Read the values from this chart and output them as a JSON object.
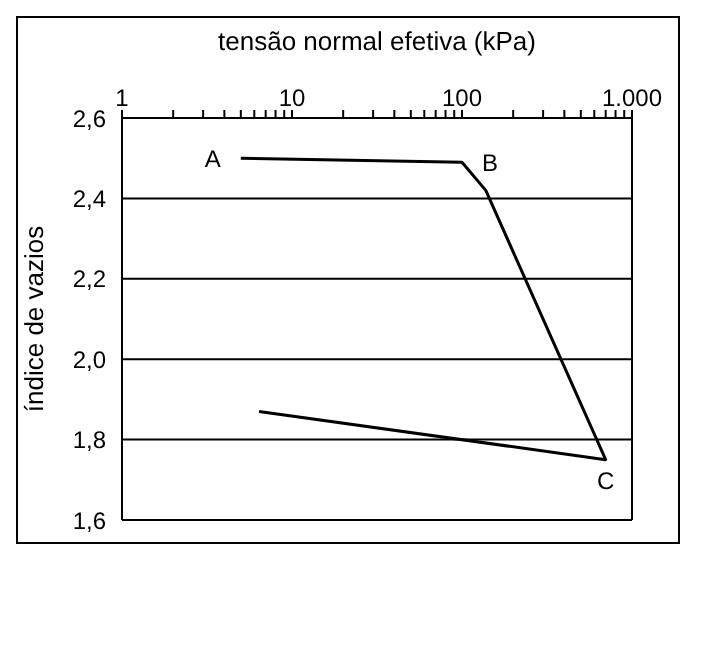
{
  "chart_data": {
    "type": "line",
    "xlabel": "tensão normal efetiva (kPa)",
    "ylabel": "índice de vazios",
    "x": [
      5,
      100,
      138,
      700,
      6.4
    ],
    "series": [
      {
        "color": "#000000",
        "values": [
          2.5,
          2.49,
          2.42,
          1.75,
          1.87
        ]
      }
    ],
    "log": "x",
    "xlim": [
      1,
      1000
    ],
    "xticks": [
      1,
      {
        "value": 2,
        "label": null
      },
      {
        "value": 3,
        "label": null
      },
      {
        "value": 4,
        "label": null
      },
      {
        "value": 5,
        "label": null
      },
      {
        "value": 6,
        "label": null
      },
      {
        "value": 7,
        "label": null
      },
      {
        "value": 8,
        "label": null
      },
      {
        "value": 9,
        "label": null
      },
      10,
      {
        "value": 20,
        "label": null
      },
      {
        "value": 30,
        "label": null
      },
      {
        "value": 40,
        "label": null
      },
      {
        "value": 50,
        "label": null
      },
      {
        "value": 60,
        "label": null
      },
      {
        "value": 70,
        "label": null
      },
      {
        "value": 80,
        "label": null
      },
      {
        "value": 90,
        "label": null
      },
      100,
      {
        "value": 200,
        "label": null
      },
      {
        "value": 300,
        "label": null
      },
      {
        "value": 400,
        "label": null
      },
      {
        "value": 500,
        "label": null
      },
      {
        "value": 600,
        "label": null
      },
      {
        "value": 700,
        "label": null
      },
      {
        "value": 800,
        "label": null
      },
      {
        "value": 900,
        "label": null
      },
      {
        "value": 1000,
        "label": "1.000"
      }
    ],
    "ylim": [
      1.6,
      2.6
    ],
    "yticks": [
      {
        "value": 1.6,
        "label": "1,6"
      },
      {
        "value": 1.8,
        "label": "1,8"
      },
      {
        "value": 2.0,
        "label": "2,0"
      },
      {
        "value": 2.2,
        "label": "2,2"
      },
      {
        "value": 2.4,
        "label": "2,4"
      },
      {
        "value": 2.6,
        "label": "2,6"
      }
    ],
    "grid": "y",
    "legend": false,
    "marker": "none",
    "line_style": "solid",
    "annotations": [
      {
        "text": "A",
        "x": 5,
        "y": 2.5
      },
      {
        "text": "B",
        "x": 100,
        "y": 2.49
      },
      {
        "text": "C",
        "x": 700,
        "y": 1.75
      }
    ]
  }
}
